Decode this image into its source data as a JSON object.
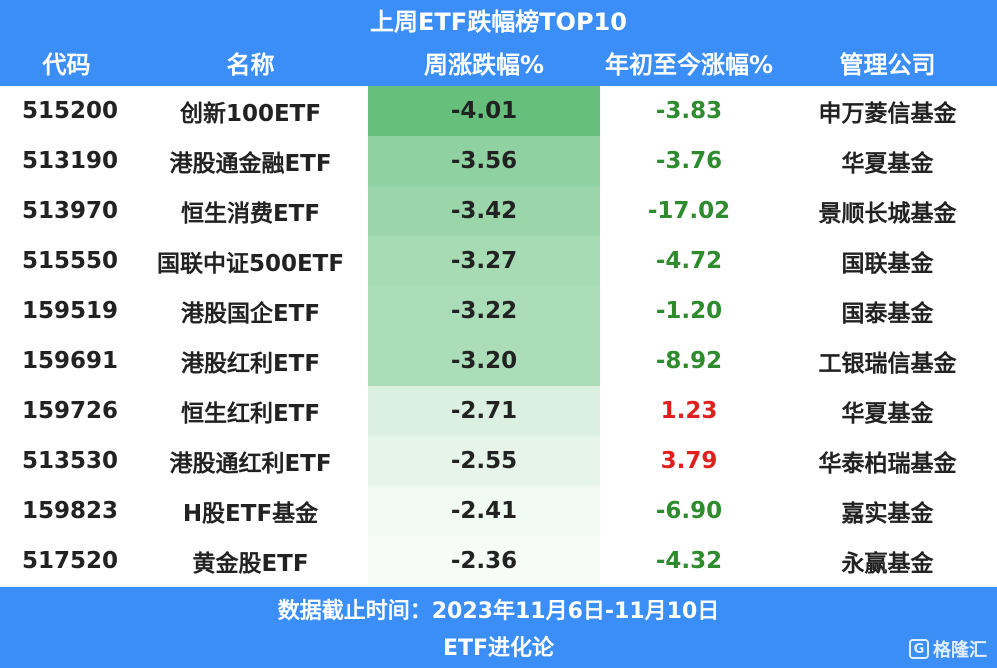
{
  "title": "上周ETF跌幅榜TOP10",
  "headers": [
    "代码",
    "名称",
    "周涨跌幅%",
    "年初至今涨幅%",
    "管理公司"
  ],
  "colors": {
    "header_bg": "#3a8ef6",
    "negative_text": "#2e8b2e",
    "positive_text": "#e0201e"
  },
  "rows": [
    {
      "code": "515200",
      "name": "创新100ETF",
      "weekly": "-4.01",
      "ytd": "-3.83",
      "ytd_sign": "neg",
      "company": "申万菱信基金",
      "heat": "#66c07c"
    },
    {
      "code": "513190",
      "name": "港股通金融ETF",
      "weekly": "-3.56",
      "ytd": "-3.76",
      "ytd_sign": "neg",
      "company": "华夏基金",
      "heat": "#8fd1a0"
    },
    {
      "code": "513970",
      "name": "恒生消费ETF",
      "weekly": "-3.42",
      "ytd": "-17.02",
      "ytd_sign": "neg",
      "company": "景顺长城基金",
      "heat": "#9ad6aa"
    },
    {
      "code": "515550",
      "name": "国联中证500ETF",
      "weekly": "-3.27",
      "ytd": "-4.72",
      "ytd_sign": "neg",
      "company": "国联基金",
      "heat": "#a6dbb4"
    },
    {
      "code": "159519",
      "name": "港股国企ETF",
      "weekly": "-3.22",
      "ytd": "-1.20",
      "ytd_sign": "neg",
      "company": "国泰基金",
      "heat": "#aadcb7"
    },
    {
      "code": "159691",
      "name": "港股红利ETF",
      "weekly": "-3.20",
      "ytd": "-8.92",
      "ytd_sign": "neg",
      "company": "工银瑞信基金",
      "heat": "#acddb9"
    },
    {
      "code": "159726",
      "name": "恒生红利ETF",
      "weekly": "-2.71",
      "ytd": "1.23",
      "ytd_sign": "pos",
      "company": "华夏基金",
      "heat": "#dcf0e1"
    },
    {
      "code": "513530",
      "name": "港股通红利ETF",
      "weekly": "-2.55",
      "ytd": "3.79",
      "ytd_sign": "pos",
      "company": "华泰柏瑞基金",
      "heat": "#e6f4ea"
    },
    {
      "code": "159823",
      "name": "H股ETF基金",
      "weekly": "-2.41",
      "ytd": "-6.90",
      "ytd_sign": "neg",
      "company": "嘉实基金",
      "heat": "#f1f9f3"
    },
    {
      "code": "517520",
      "name": "黄金股ETF",
      "weekly": "-2.36",
      "ytd": "-4.32",
      "ytd_sign": "neg",
      "company": "永赢基金",
      "heat": "#f8fcf9"
    }
  ],
  "footer": {
    "date_line": "数据截止时间：2023年11月6日-11月10日",
    "source_line": "ETF进化论",
    "watermark": "格隆汇"
  }
}
